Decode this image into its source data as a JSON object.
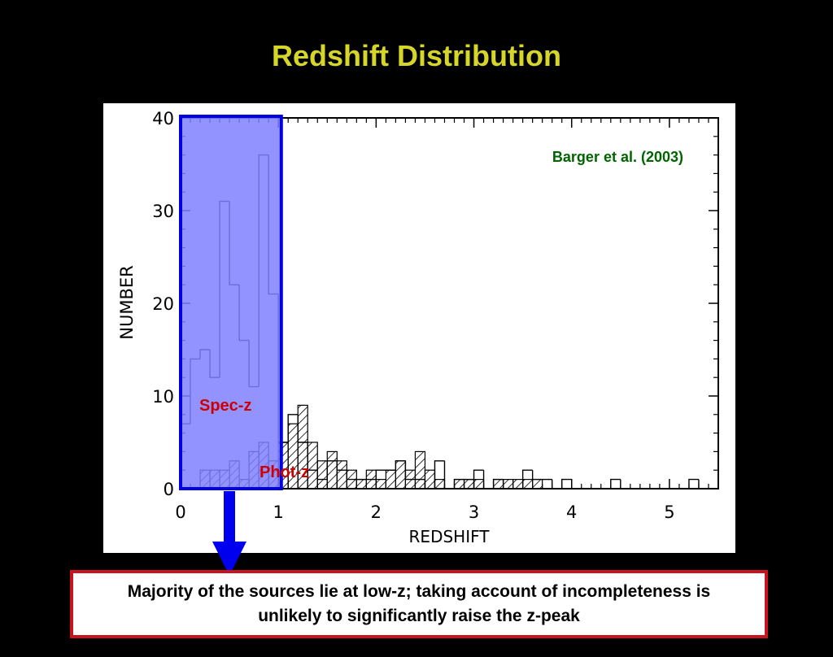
{
  "title": "Redshift Distribution",
  "caption": "Majority of the sources lie at low-z; taking account of incompleteness is unlikely to significantly raise the z-peak",
  "colors": {
    "background": "#000000",
    "title": "#d6d62a",
    "highlight_fill": "#8080ff",
    "highlight_border": "#0000e0",
    "arrow": "#0000ee",
    "annotation_red": "#cc0000",
    "citation_green": "#006400",
    "caption_border": "#c8141e"
  },
  "chart_data": {
    "type": "bar",
    "title": "",
    "xlabel": "REDSHIFT",
    "ylabel": "NUMBER",
    "xlim": [
      0,
      5.5
    ],
    "ylim": [
      0,
      40
    ],
    "xticks": [
      "0",
      "1",
      "2",
      "3",
      "4",
      "5"
    ],
    "yticks": [
      "0",
      "10",
      "20",
      "30",
      "40"
    ],
    "bin_width": 0.1,
    "bin_start": 0.0,
    "series": [
      {
        "name": "Spec-z",
        "style": "outline",
        "values": [
          7,
          14,
          15,
          12,
          31,
          22,
          16,
          11,
          36,
          21,
          5,
          8,
          5,
          2,
          1,
          3,
          2,
          1,
          1,
          1,
          2,
          2,
          3,
          1,
          1,
          0,
          3,
          0,
          1,
          1,
          2,
          0,
          1,
          0,
          0,
          2,
          1,
          1,
          0,
          1,
          0,
          0,
          0,
          0,
          1,
          0,
          0,
          0,
          0,
          0,
          0,
          0,
          1,
          0,
          0
        ]
      },
      {
        "name": "Phot-z",
        "style": "hatched",
        "values": [
          0,
          0,
          2,
          2,
          2,
          3,
          1,
          4,
          5,
          3,
          5,
          7,
          9,
          5,
          3,
          4,
          3,
          2,
          1,
          2,
          1,
          2,
          3,
          2,
          4,
          2,
          1,
          0,
          1,
          1,
          1,
          0,
          1,
          1,
          1,
          1,
          1,
          0,
          0,
          0,
          0,
          0,
          0,
          0,
          0,
          0,
          0,
          0,
          0,
          0,
          0,
          0,
          0,
          0,
          0
        ]
      }
    ],
    "highlight_region": [
      0,
      1.03
    ],
    "annotations": [
      "Barger et al. (2003)",
      "Spec-z",
      "Phot-z"
    ]
  }
}
